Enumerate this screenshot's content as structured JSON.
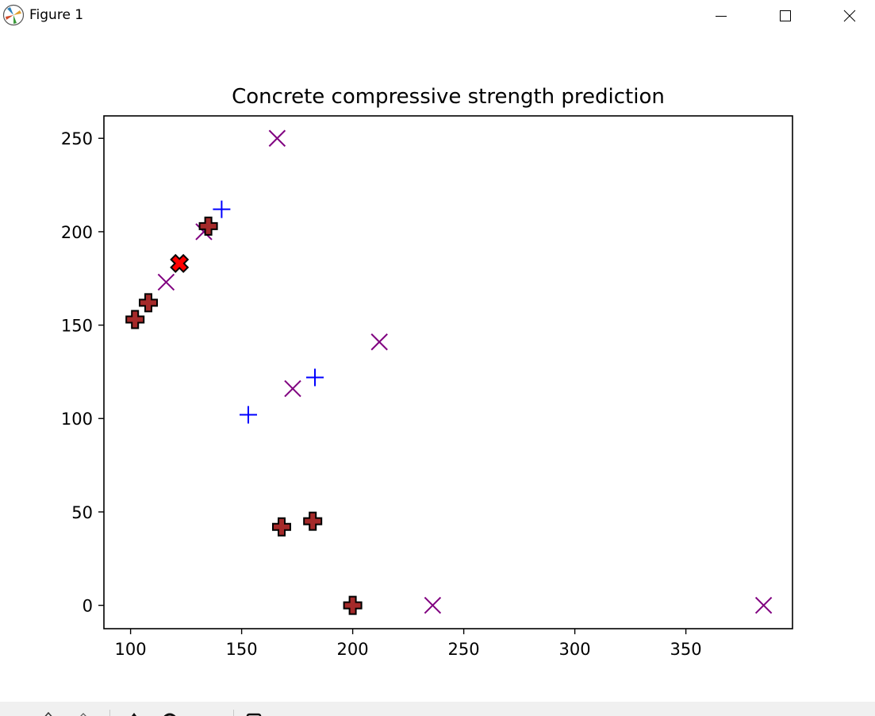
{
  "window": {
    "title": "Figure 1",
    "icon": "matplotlib-logo-icon",
    "controls": [
      "minimize-icon",
      "maximize-icon",
      "close-icon"
    ]
  },
  "chart_data": {
    "type": "scatter",
    "title": "Concrete compressive strength prediction",
    "xlabel": "",
    "ylabel": "",
    "xlim": [
      88,
      398
    ],
    "ylim": [
      -12.5,
      262
    ],
    "xticks": [
      100,
      150,
      200,
      250,
      300,
      350
    ],
    "yticks": [
      0,
      50,
      100,
      150,
      200,
      250
    ],
    "grid": false,
    "legend": "none",
    "series": [
      {
        "marker": "plus",
        "color": "#0000ff",
        "points": [
          [
            141,
            212
          ],
          [
            153,
            102
          ],
          [
            183,
            122
          ]
        ]
      },
      {
        "marker": "x",
        "color": "#800080",
        "points": [
          [
            166,
            250
          ],
          [
            133,
            200
          ],
          [
            116,
            173
          ],
          [
            212,
            141
          ],
          [
            173,
            116
          ],
          [
            236,
            0
          ],
          [
            385,
            0
          ]
        ]
      },
      {
        "marker": "filled-plus",
        "color": "#a52a2a",
        "edge_color": "#000000",
        "points": [
          [
            102,
            153
          ],
          [
            108,
            162
          ],
          [
            135,
            203
          ],
          [
            168,
            42
          ],
          [
            182,
            45
          ],
          [
            200,
            0
          ]
        ]
      },
      {
        "marker": "filled-x",
        "color": "#ff0000",
        "edge_color": "#000000",
        "points": [
          [
            122,
            183
          ]
        ]
      }
    ]
  },
  "toolbar": {
    "icons": [
      "home-icon",
      "back-icon",
      "forward-icon",
      "pan-icon",
      "zoom-icon",
      "configure-icon",
      "save-icon"
    ]
  }
}
